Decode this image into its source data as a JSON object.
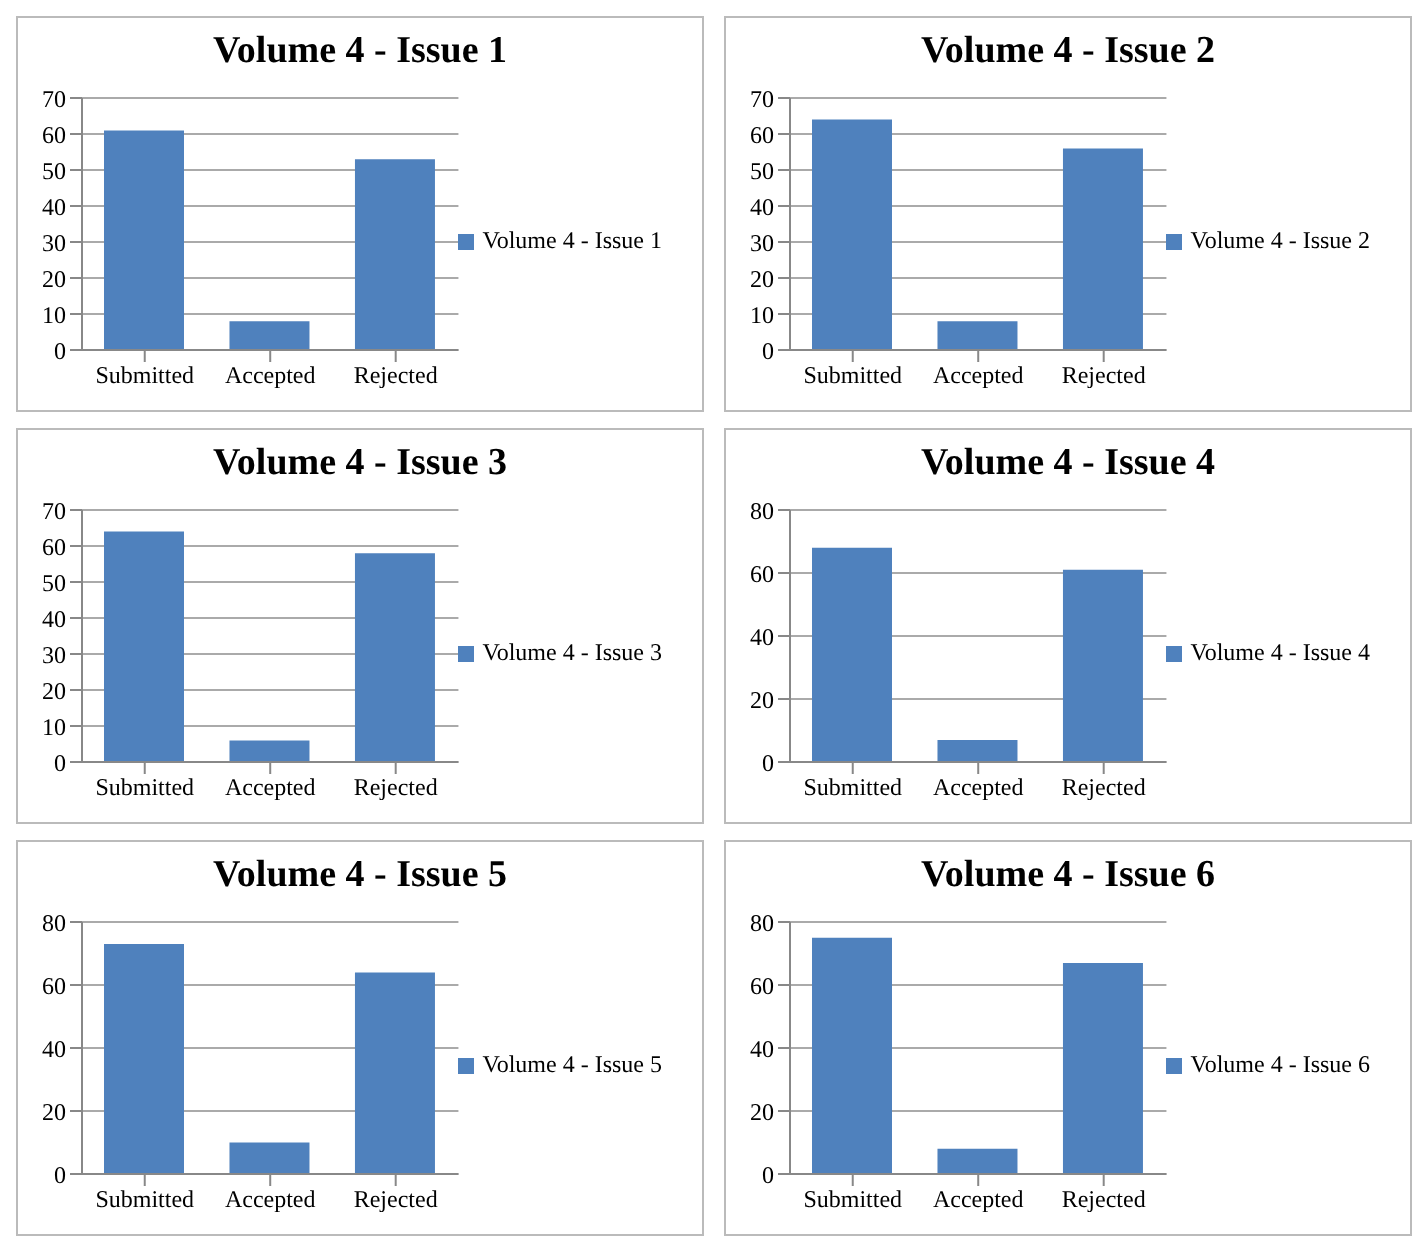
{
  "chart_data": [
    {
      "type": "bar",
      "title": "Volume 4 - Issue 1",
      "categories": [
        "Submitted",
        "Accepted",
        "Rejected"
      ],
      "series": [
        {
          "name": "Volume 4 - Issue 1",
          "color": "#4f81bd",
          "values": [
            61,
            8,
            53
          ]
        }
      ],
      "ylim": [
        0,
        70
      ],
      "yticks": [
        0,
        10,
        20,
        30,
        40,
        50,
        60,
        70
      ],
      "grid": "y",
      "legend": "right"
    },
    {
      "type": "bar",
      "title": "Volume 4 - Issue 2",
      "categories": [
        "Submitted",
        "Accepted",
        "Rejected"
      ],
      "series": [
        {
          "name": "Volume 4 - Issue 2",
          "color": "#4f81bd",
          "values": [
            64,
            8,
            56
          ]
        }
      ],
      "ylim": [
        0,
        70
      ],
      "yticks": [
        0,
        10,
        20,
        30,
        40,
        50,
        60,
        70
      ],
      "grid": "y",
      "legend": "right"
    },
    {
      "type": "bar",
      "title": "Volume 4 - Issue 3",
      "categories": [
        "Submitted",
        "Accepted",
        "Rejected"
      ],
      "series": [
        {
          "name": "Volume 4 - Issue 3",
          "color": "#4f81bd",
          "values": [
            64,
            6,
            58
          ]
        }
      ],
      "ylim": [
        0,
        70
      ],
      "yticks": [
        0,
        10,
        20,
        30,
        40,
        50,
        60,
        70
      ],
      "grid": "y",
      "legend": "right"
    },
    {
      "type": "bar",
      "title": "Volume 4 - Issue 4",
      "categories": [
        "Submitted",
        "Accepted",
        "Rejected"
      ],
      "series": [
        {
          "name": "Volume 4 - Issue 4",
          "color": "#4f81bd",
          "values": [
            68,
            7,
            61
          ]
        }
      ],
      "ylim": [
        0,
        80
      ],
      "yticks": [
        0,
        20,
        40,
        60,
        80
      ],
      "grid": "y",
      "legend": "right"
    },
    {
      "type": "bar",
      "title": "Volume 4 - Issue 5",
      "categories": [
        "Submitted",
        "Accepted",
        "Rejected"
      ],
      "series": [
        {
          "name": "Volume 4 - Issue 5",
          "color": "#4f81bd",
          "values": [
            73,
            10,
            64
          ]
        }
      ],
      "ylim": [
        0,
        80
      ],
      "yticks": [
        0,
        20,
        40,
        60,
        80
      ],
      "grid": "y",
      "legend": "right"
    },
    {
      "type": "bar",
      "title": "Volume 4 - Issue 6",
      "categories": [
        "Submitted",
        "Accepted",
        "Rejected"
      ],
      "series": [
        {
          "name": "Volume 4 - Issue 6",
          "color": "#4f81bd",
          "values": [
            75,
            8,
            67
          ]
        }
      ],
      "ylim": [
        0,
        80
      ],
      "yticks": [
        0,
        20,
        40,
        60,
        80
      ],
      "grid": "y",
      "legend": "right"
    }
  ]
}
